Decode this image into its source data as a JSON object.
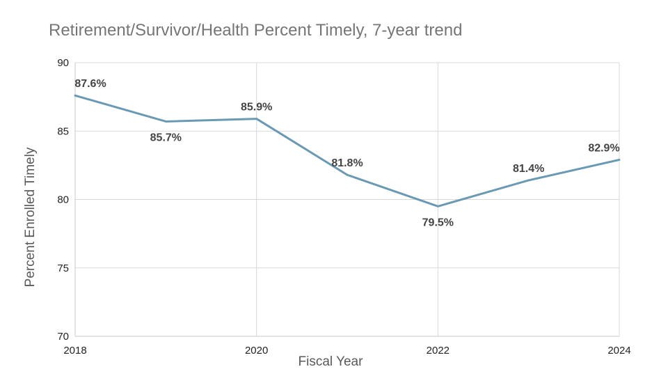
{
  "chart_data": {
    "type": "line",
    "title": "Retirement/Survivor/Health Percent Timely, 7-year trend",
    "xlabel": "Fiscal Year",
    "ylabel": "Percent Enrolled Timely",
    "x": [
      2018,
      2019,
      2020,
      2021,
      2022,
      2023,
      2024
    ],
    "x_ticks": [
      "2018",
      "2020",
      "2022",
      "2024"
    ],
    "y_ticks": [
      "90",
      "85",
      "80",
      "75",
      "70"
    ],
    "xlim": [
      2018,
      2024
    ],
    "ylim": [
      70,
      90
    ],
    "grid": true,
    "series": [
      {
        "values": [
          87.6,
          85.7,
          85.9,
          81.8,
          79.5,
          81.4,
          82.9
        ],
        "labels": [
          "87.6%",
          "85.7%",
          "85.9%",
          "81.8%",
          "79.5%",
          "81.4%",
          "82.9%"
        ],
        "color": "#6a9ab3"
      }
    ]
  }
}
